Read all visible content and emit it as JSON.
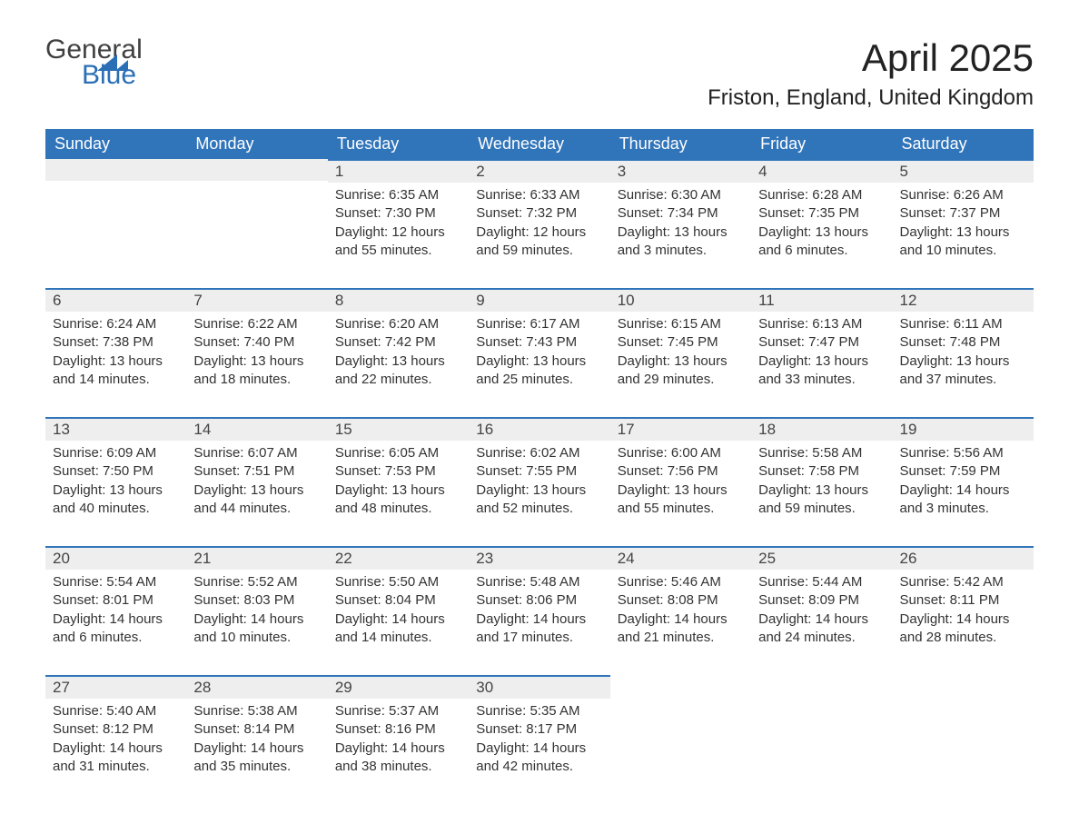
{
  "brand": {
    "word1": "General",
    "word2": "Blue"
  },
  "title": "April 2025",
  "location": "Friston, England, United Kingdom",
  "colors": {
    "header_bg": "#3074ba",
    "header_text": "#ffffff",
    "daynum_bg": "#eeeeee",
    "accent_border": "#3074ba",
    "text": "#333333",
    "logo_gray": "#404040",
    "logo_blue": "#2a6fb5",
    "page_bg": "#ffffff"
  },
  "day_labels": [
    "Sunday",
    "Monday",
    "Tuesday",
    "Wednesday",
    "Thursday",
    "Friday",
    "Saturday"
  ],
  "weeks": [
    [
      {
        "n": "",
        "sr": "",
        "ss": "",
        "dl": ""
      },
      {
        "n": "",
        "sr": "",
        "ss": "",
        "dl": ""
      },
      {
        "n": "1",
        "sr": "6:35 AM",
        "ss": "7:30 PM",
        "dl": "12 hours and 55 minutes."
      },
      {
        "n": "2",
        "sr": "6:33 AM",
        "ss": "7:32 PM",
        "dl": "12 hours and 59 minutes."
      },
      {
        "n": "3",
        "sr": "6:30 AM",
        "ss": "7:34 PM",
        "dl": "13 hours and 3 minutes."
      },
      {
        "n": "4",
        "sr": "6:28 AM",
        "ss": "7:35 PM",
        "dl": "13 hours and 6 minutes."
      },
      {
        "n": "5",
        "sr": "6:26 AM",
        "ss": "7:37 PM",
        "dl": "13 hours and 10 minutes."
      }
    ],
    [
      {
        "n": "6",
        "sr": "6:24 AM",
        "ss": "7:38 PM",
        "dl": "13 hours and 14 minutes."
      },
      {
        "n": "7",
        "sr": "6:22 AM",
        "ss": "7:40 PM",
        "dl": "13 hours and 18 minutes."
      },
      {
        "n": "8",
        "sr": "6:20 AM",
        "ss": "7:42 PM",
        "dl": "13 hours and 22 minutes."
      },
      {
        "n": "9",
        "sr": "6:17 AM",
        "ss": "7:43 PM",
        "dl": "13 hours and 25 minutes."
      },
      {
        "n": "10",
        "sr": "6:15 AM",
        "ss": "7:45 PM",
        "dl": "13 hours and 29 minutes."
      },
      {
        "n": "11",
        "sr": "6:13 AM",
        "ss": "7:47 PM",
        "dl": "13 hours and 33 minutes."
      },
      {
        "n": "12",
        "sr": "6:11 AM",
        "ss": "7:48 PM",
        "dl": "13 hours and 37 minutes."
      }
    ],
    [
      {
        "n": "13",
        "sr": "6:09 AM",
        "ss": "7:50 PM",
        "dl": "13 hours and 40 minutes."
      },
      {
        "n": "14",
        "sr": "6:07 AM",
        "ss": "7:51 PM",
        "dl": "13 hours and 44 minutes."
      },
      {
        "n": "15",
        "sr": "6:05 AM",
        "ss": "7:53 PM",
        "dl": "13 hours and 48 minutes."
      },
      {
        "n": "16",
        "sr": "6:02 AM",
        "ss": "7:55 PM",
        "dl": "13 hours and 52 minutes."
      },
      {
        "n": "17",
        "sr": "6:00 AM",
        "ss": "7:56 PM",
        "dl": "13 hours and 55 minutes."
      },
      {
        "n": "18",
        "sr": "5:58 AM",
        "ss": "7:58 PM",
        "dl": "13 hours and 59 minutes."
      },
      {
        "n": "19",
        "sr": "5:56 AM",
        "ss": "7:59 PM",
        "dl": "14 hours and 3 minutes."
      }
    ],
    [
      {
        "n": "20",
        "sr": "5:54 AM",
        "ss": "8:01 PM",
        "dl": "14 hours and 6 minutes."
      },
      {
        "n": "21",
        "sr": "5:52 AM",
        "ss": "8:03 PM",
        "dl": "14 hours and 10 minutes."
      },
      {
        "n": "22",
        "sr": "5:50 AM",
        "ss": "8:04 PM",
        "dl": "14 hours and 14 minutes."
      },
      {
        "n": "23",
        "sr": "5:48 AM",
        "ss": "8:06 PM",
        "dl": "14 hours and 17 minutes."
      },
      {
        "n": "24",
        "sr": "5:46 AM",
        "ss": "8:08 PM",
        "dl": "14 hours and 21 minutes."
      },
      {
        "n": "25",
        "sr": "5:44 AM",
        "ss": "8:09 PM",
        "dl": "14 hours and 24 minutes."
      },
      {
        "n": "26",
        "sr": "5:42 AM",
        "ss": "8:11 PM",
        "dl": "14 hours and 28 minutes."
      }
    ],
    [
      {
        "n": "27",
        "sr": "5:40 AM",
        "ss": "8:12 PM",
        "dl": "14 hours and 31 minutes."
      },
      {
        "n": "28",
        "sr": "5:38 AM",
        "ss": "8:14 PM",
        "dl": "14 hours and 35 minutes."
      },
      {
        "n": "29",
        "sr": "5:37 AM",
        "ss": "8:16 PM",
        "dl": "14 hours and 38 minutes."
      },
      {
        "n": "30",
        "sr": "5:35 AM",
        "ss": "8:17 PM",
        "dl": "14 hours and 42 minutes."
      },
      {
        "n": "",
        "sr": "",
        "ss": "",
        "dl": ""
      },
      {
        "n": "",
        "sr": "",
        "ss": "",
        "dl": ""
      },
      {
        "n": "",
        "sr": "",
        "ss": "",
        "dl": ""
      }
    ]
  ],
  "labels": {
    "sunrise": "Sunrise: ",
    "sunset": "Sunset: ",
    "daylight": "Daylight: "
  }
}
